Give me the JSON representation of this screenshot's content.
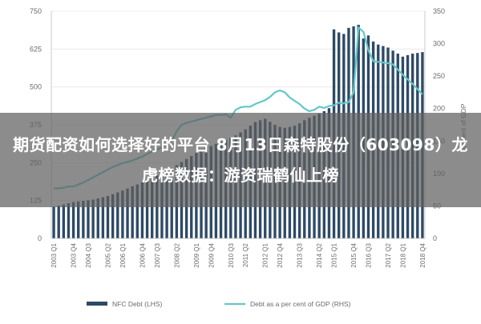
{
  "overlay": {
    "title": "期货配资如何选择好的平台 8月13日森特股份（603098）龙虎榜数据：游资瑞鹤仙上榜"
  },
  "colors": {
    "bars": "#2e4a66",
    "line": "#62c7c9",
    "gridline": "#e6e6e6",
    "text": "#6b6b6b",
    "overlay": "#5f5f5f"
  },
  "chart_data": {
    "type": "bar",
    "title": "",
    "xlabel": "",
    "ylabel_left": "",
    "ylabel_right": "per cent of GDP",
    "ylim_left": [
      0,
      750
    ],
    "ylim_right": [
      0,
      350
    ],
    "yticks_left": [
      "0",
      "125",
      "250",
      "375",
      "500",
      "625",
      "750"
    ],
    "yticks_right": [
      "0",
      "50",
      "100",
      "150",
      "200",
      "250",
      "300",
      "350"
    ],
    "xtick_labels": [
      "2003 Q1",
      "2003 Q4",
      "2004 Q3",
      "2005 Q2",
      "2006 Q1",
      "2006 Q4",
      "2007 Q3",
      "2008 Q2",
      "2009 Q1",
      "2009 Q4",
      "2010 Q3",
      "2011 Q2",
      "2012 Q1",
      "2012 Q4",
      "2013 Q3",
      "2014 Q2",
      "2015 Q1",
      "2015 Q4",
      "2016 Q3",
      "2017 Q2",
      "2018 Q1",
      "2018 Q4"
    ],
    "grid": false,
    "legend_position": "bottom",
    "series": [
      {
        "name": "NFC Debt (LHS)",
        "type": "bar",
        "axis": "left",
        "values": [
          105,
          108,
          112,
          116,
          120,
          122,
          124,
          126,
          128,
          132,
          136,
          140,
          146,
          152,
          158,
          165,
          172,
          178,
          185,
          192,
          200,
          208,
          216,
          224,
          232,
          242,
          252,
          262,
          272,
          282,
          292,
          300,
          305,
          312,
          318,
          325,
          332,
          340,
          350,
          360,
          372,
          384,
          390,
          395,
          385,
          375,
          368,
          365,
          368,
          372,
          380,
          390,
          398,
          405,
          412,
          420,
          430,
          690,
          680,
          675,
          695,
          700,
          705,
          660,
          670,
          650,
          640,
          635,
          630,
          620,
          610,
          600,
          605,
          610,
          612,
          615
        ]
      },
      {
        "name": "Debt as a per cent of GDP (RHS)",
        "type": "line",
        "axis": "right",
        "values": [
          77,
          77,
          78,
          80,
          80,
          83,
          86,
          90,
          94,
          98,
          102,
          106,
          110,
          113,
          116,
          118,
          120,
          123,
          126,
          130,
          134,
          137,
          140,
          145,
          150,
          165,
          175,
          178,
          180,
          182,
          184,
          186,
          188,
          190,
          190,
          191,
          186,
          198,
          202,
          203,
          203,
          207,
          210,
          213,
          218,
          225,
          228,
          225,
          217,
          212,
          207,
          200,
          196,
          198,
          203,
          201,
          204,
          205,
          209,
          208,
          210,
          225,
          325,
          318,
          290,
          273,
          272,
          271,
          270,
          268,
          260,
          252,
          245,
          238,
          230,
          222
        ]
      }
    ]
  }
}
